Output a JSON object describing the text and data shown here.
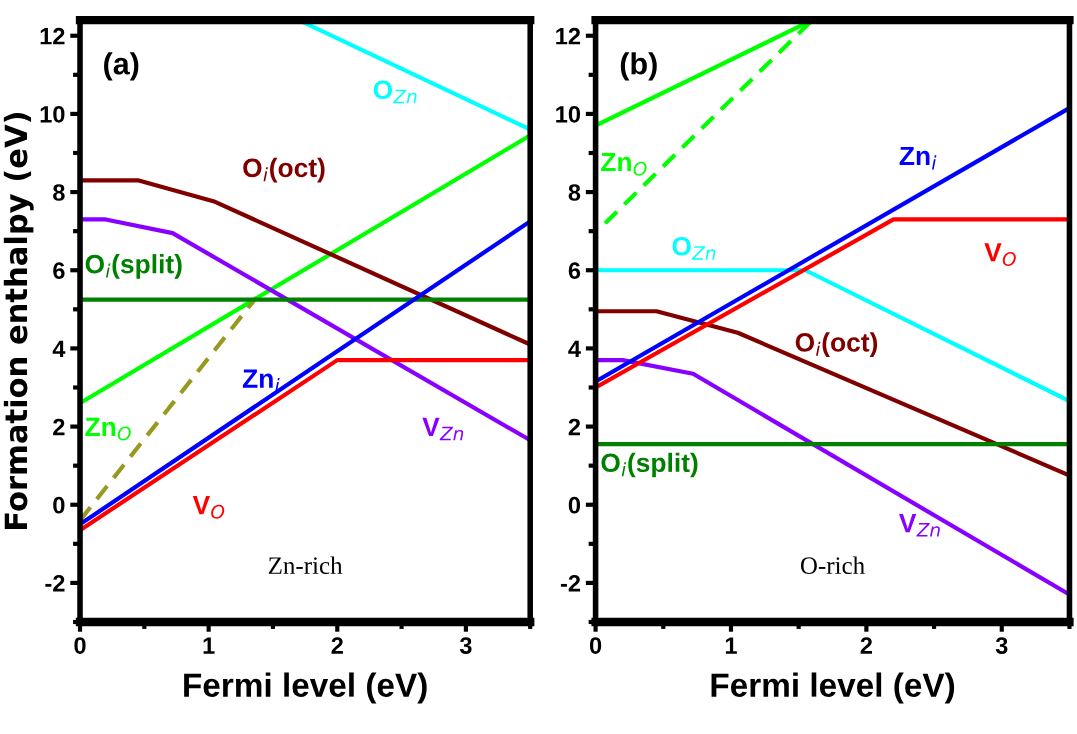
{
  "chart_data": [
    {
      "type": "line",
      "xlabel": "Fermi level (eV)",
      "ylabel": "Formation enthalpy (eV)",
      "xlim": [
        0,
        3.5
      ],
      "ylim": [
        -3,
        12.4
      ],
      "xticks": [
        0,
        1,
        2,
        3
      ],
      "yticks": [
        -2,
        0,
        2,
        4,
        6,
        8,
        10,
        12
      ],
      "annotations": [
        "(a)",
        "Zn-rich"
      ],
      "series": [
        {
          "name": "O$_{Zn}$",
          "color": "#00ffff",
          "x": [
            1.7,
            3.5
          ],
          "values": [
            12.4,
            9.6
          ]
        },
        {
          "name": "Zn$_{O}$",
          "color": "#00ff00",
          "x": [
            0,
            3.5
          ],
          "values": [
            2.6,
            9.45
          ]
        },
        {
          "color": "#999922",
          "line_style": "dashed",
          "x": [
            0,
            1.37
          ],
          "values": [
            -0.4,
            5.3
          ]
        },
        {
          "name": "O$_{i}$(oct)",
          "color": "#800000",
          "x": [
            0,
            0.45,
            1.05,
            3.5
          ],
          "values": [
            8.3,
            8.3,
            7.75,
            4.1
          ]
        },
        {
          "name": "V$_{Zn}$",
          "color": "#8800ff",
          "x": [
            0,
            0.2,
            0.72,
            3.5
          ],
          "values": [
            7.3,
            7.3,
            6.95,
            1.65
          ]
        },
        {
          "name": "O$_{i}$(split)",
          "color": "#008000",
          "x": [
            0,
            3.5
          ],
          "values": [
            5.25,
            5.25
          ]
        },
        {
          "name": "Zn$_{i}$",
          "color": "#0000ff",
          "x": [
            0,
            3.5
          ],
          "values": [
            -0.5,
            7.25
          ]
        },
        {
          "name": "V$_{O}$",
          "color": "#ff0000",
          "x": [
            0,
            2.0,
            3.5
          ],
          "values": [
            -0.65,
            3.7,
            3.7
          ]
        }
      ]
    },
    {
      "type": "line",
      "xlabel": "Fermi level (eV)",
      "xlim": [
        0,
        3.5
      ],
      "ylim": [
        -3,
        12.4
      ],
      "xticks": [
        0,
        1,
        2,
        3
      ],
      "yticks": [
        -2,
        0,
        2,
        4,
        6,
        8,
        10,
        12
      ],
      "annotations": [
        "(b)",
        "O-rich"
      ],
      "series": [
        {
          "name": "O$_{Zn}$",
          "color": "#00ffff",
          "x": [
            0,
            1.55,
            3.5
          ],
          "values": [
            6.0,
            6.0,
            2.65
          ]
        },
        {
          "name": "Zn$_{O}$",
          "color": "#00ff00",
          "x": [
            0,
            1.6
          ],
          "values": [
            9.7,
            12.4
          ]
        },
        {
          "color": "#00ff00",
          "line_style": "dashed",
          "x": [
            0.07,
            1.6
          ],
          "values": [
            7.2,
            12.4
          ]
        },
        {
          "name": "O$_{i}$(oct)",
          "color": "#800000",
          "x": [
            0,
            0.45,
            1.05,
            3.5
          ],
          "values": [
            4.95,
            4.95,
            4.4,
            0.75
          ]
        },
        {
          "name": "V$_{Zn}$",
          "color": "#8800ff",
          "x": [
            0,
            0.2,
            0.72,
            3.5
          ],
          "values": [
            3.7,
            3.7,
            3.35,
            -2.3
          ]
        },
        {
          "name": "O$_{i}$(split)",
          "color": "#008000",
          "x": [
            0,
            3.5
          ],
          "values": [
            1.55,
            1.55
          ]
        },
        {
          "name": "Zn$_{i}$",
          "color": "#0000ff",
          "x": [
            0,
            3.5
          ],
          "values": [
            3.15,
            10.15
          ]
        },
        {
          "name": "V$_{O}$",
          "color": "#ff0000",
          "x": [
            0,
            2.2,
            3.5
          ],
          "values": [
            3.0,
            7.3,
            7.3
          ]
        }
      ]
    }
  ]
}
